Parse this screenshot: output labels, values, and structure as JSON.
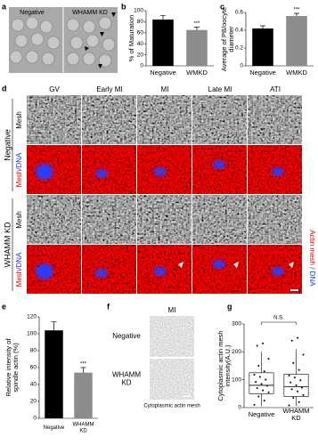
{
  "figure": {
    "panel_labels": [
      "a",
      "b",
      "c",
      "d",
      "e",
      "f",
      "g"
    ],
    "a": {
      "labels": [
        "Negative",
        "WHAMM KD"
      ]
    },
    "d": {
      "columns": [
        "GV",
        "Early MI",
        "MI",
        "Late MI",
        "ATI"
      ],
      "row_labels": [
        "Mesh",
        "Mesh/DNA",
        "Mesh",
        "Mesh/DNA"
      ],
      "groups": [
        "Negative",
        "WHAMM KD"
      ],
      "side_label": "Actin mesh / DNA"
    },
    "f": {
      "title": "MI",
      "labels": [
        "Negative",
        "WHAMM KD"
      ],
      "caption": "Cytoplasmic actin mesh"
    }
  },
  "chart_data": [
    {
      "type": "bar",
      "ylabel": "% of Maturation",
      "categories": [
        "Negative",
        "WMKD"
      ],
      "values": [
        84,
        65
      ],
      "errors": [
        7,
        5
      ],
      "colors": [
        "#000000",
        "#8c8c8c"
      ],
      "annotation": "***",
      "ylim": [
        0,
        100
      ],
      "yticks": [
        0,
        20,
        40,
        60,
        80,
        100
      ]
    },
    {
      "type": "bar",
      "ylabel": "Average of PB/oocyte diameter",
      "categories": [
        "Negative",
        "WMKD"
      ],
      "values": [
        0.42,
        0.56
      ],
      "errors": [
        0.03,
        0.03
      ],
      "colors": [
        "#000000",
        "#8c8c8c"
      ],
      "annotation": "***",
      "ylim": [
        0,
        0.6
      ],
      "yticks": [
        0,
        0.2,
        0.4,
        0.6
      ]
    },
    {
      "type": "bar",
      "ylabel": "Relative intensity of spindle actin (%)",
      "categories": [
        "Negative",
        "WHAMM KD"
      ],
      "values": [
        104,
        54
      ],
      "errors": [
        10,
        6
      ],
      "colors": [
        "#000000",
        "#8c8c8c"
      ],
      "annotation": "***",
      "ylim": [
        0,
        120
      ],
      "yticks": [
        0,
        20,
        40,
        60,
        80,
        100,
        120
      ]
    },
    {
      "type": "box",
      "ylabel": "Cytoplasmic actin mesh intensity(A.U.)",
      "categories": [
        "Negative",
        "WHAMM KD"
      ],
      "boxes": [
        {
          "min": 5,
          "q1": 50,
          "median": 80,
          "q3": 125,
          "max": 200,
          "points": [
            10,
            25,
            40,
            55,
            62,
            70,
            78,
            85,
            92,
            100,
            110,
            118,
            130,
            150,
            175,
            230,
            222
          ]
        },
        {
          "min": 5,
          "q1": 40,
          "median": 75,
          "q3": 120,
          "max": 210,
          "points": [
            8,
            20,
            35,
            45,
            58,
            66,
            72,
            80,
            90,
            98,
            108,
            115,
            135,
            160,
            190,
            250,
            240
          ]
        }
      ],
      "annotation": "N.S.",
      "ylim": [
        0,
        300
      ],
      "yticks": [
        0,
        100,
        200,
        300
      ]
    }
  ]
}
